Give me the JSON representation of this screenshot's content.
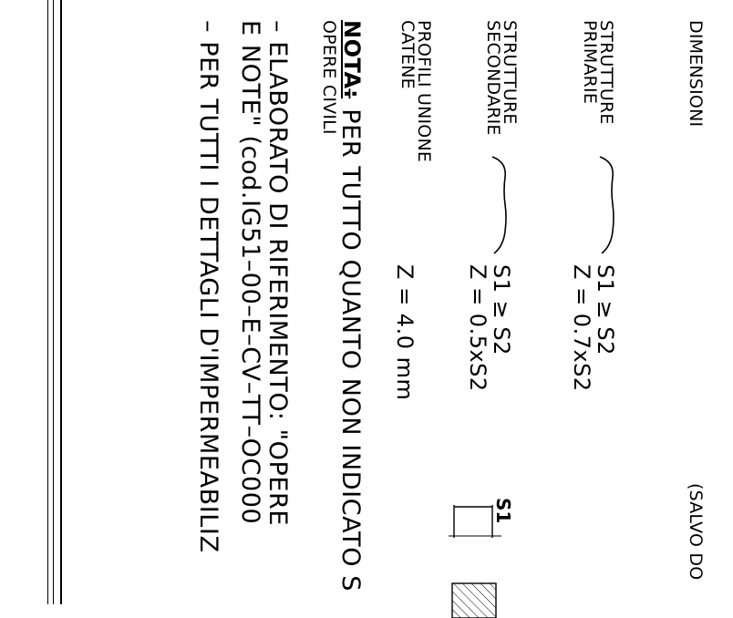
{
  "heading": {
    "left": "DIMENSIONI",
    "right": "(SALVO DO"
  },
  "rows": [
    {
      "label_line1": "STRUTTURE",
      "label_line2": "PRIMARIE",
      "relation": "S1 ≥ S2",
      "formula": "Z = 0.7xS2"
    },
    {
      "label_line1": "STRUTTURE",
      "label_line2": "SECONDARIE",
      "relation": "S1 ≥ S2",
      "formula": "Z = 0.5xS2"
    },
    {
      "label_line1": "PROFILI UNIONE",
      "label_line2": "CATENE",
      "relation": "",
      "formula": "Z = 4.0 mm"
    }
  ],
  "detail": {
    "label": "S1"
  },
  "notes": {
    "title": "NOTA:",
    "item1_line1": "– PER TUTTO QUANTO NON INDICATO S",
    "item1_line2": "OPERE CIVILI",
    "item2_line1": "– ELABORATO DI RIFERIMENTO: \"OPERE",
    "item2_line2": "E NOTE\" (cod.IG51–00–E–CV–TT–OC000",
    "item3_line1": "– PER TUTTI I DETTAGLI D'IMPERMEABILIZ"
  }
}
